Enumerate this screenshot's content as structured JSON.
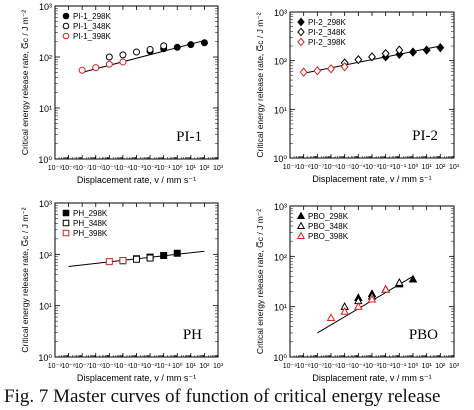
{
  "figure": {
    "caption": "Fig. 7  Master curves of function of critical energy release"
  },
  "chart_data": [
    {
      "type": "scatter",
      "panel_label": "PI-1",
      "xlabel": "Displacement rate, v / mm s⁻¹",
      "ylabel": "Critical energy release rate, G̅c / J m⁻²",
      "x_scale": "log",
      "y_scale": "log",
      "xlim": [
        1e-09,
        1000.0
      ],
      "ylim": [
        1,
        1000
      ],
      "x_ticks": [
        "10⁻⁹",
        "10⁻⁸",
        "10⁻⁷",
        "10⁻⁶",
        "10⁻⁵",
        "10⁻⁴",
        "10⁻³",
        "10⁻²",
        "10⁻¹",
        "10⁰",
        "10¹",
        "10²",
        "10³"
      ],
      "y_ticks": [
        "10⁰",
        "10¹",
        "10²",
        "10³"
      ],
      "legend_position": "top-left",
      "series": [
        {
          "name": "PI-1_298K",
          "marker": "circle",
          "fill": "filled",
          "color": "#000000",
          "x": [
            0.01,
            0.1,
            1,
            10,
            100
          ],
          "y": [
            130,
            145,
            155,
            175,
            190
          ]
        },
        {
          "name": "PI-1_348K",
          "marker": "circle",
          "fill": "open",
          "color": "#000000",
          "x": [
            1e-05,
            0.0001,
            0.001,
            0.01,
            0.1
          ],
          "y": [
            100,
            110,
            125,
            140,
            165
          ]
        },
        {
          "name": "PI-1_398K",
          "marker": "circle",
          "fill": "open",
          "color": "#e02020",
          "x": [
            1e-07,
            1e-06,
            1e-05,
            0.0001
          ],
          "y": [
            55,
            62,
            72,
            80
          ]
        }
      ],
      "fit_line": {
        "x": [
          1e-07,
          100.0
        ],
        "y": [
          50,
          210
        ]
      }
    },
    {
      "type": "scatter",
      "panel_label": "PI-2",
      "xlabel": "Displacement rate, v / mm s⁻¹",
      "ylabel": "Critical energy release rate, G̅c / J m⁻²",
      "x_scale": "log",
      "y_scale": "log",
      "xlim": [
        1e-09,
        1000.0
      ],
      "ylim": [
        1,
        1000
      ],
      "x_ticks": [
        "10⁻⁹",
        "10⁻⁸",
        "10⁻⁷",
        "10⁻⁶",
        "10⁻⁵",
        "10⁻⁴",
        "10⁻³",
        "10⁻²",
        "10⁻¹",
        "10⁰",
        "10¹",
        "10²",
        "10³"
      ],
      "y_ticks": [
        "10⁰",
        "10¹",
        "10²",
        "10³"
      ],
      "legend_position": "top-left",
      "series": [
        {
          "name": "PI-2_298K",
          "marker": "diamond",
          "fill": "filled",
          "color": "#000000",
          "x": [
            0.01,
            0.1,
            1,
            10,
            100
          ],
          "y": [
            120,
            135,
            150,
            165,
            185
          ]
        },
        {
          "name": "PI-2_348K",
          "marker": "diamond",
          "fill": "open",
          "color": "#000000",
          "x": [
            1e-05,
            0.0001,
            0.001,
            0.01,
            0.1
          ],
          "y": [
            90,
            105,
            120,
            140,
            165
          ]
        },
        {
          "name": "PI-2_398K",
          "marker": "diamond",
          "fill": "open",
          "color": "#e02020",
          "x": [
            1e-08,
            1e-07,
            1e-06,
            1e-05
          ],
          "y": [
            58,
            62,
            68,
            75
          ]
        }
      ],
      "fit_line": {
        "x": [
          1e-08,
          100.0
        ],
        "y": [
          55,
          200
        ]
      }
    },
    {
      "type": "scatter",
      "panel_label": "PH",
      "xlabel": "Displacement rate, v / mm s⁻¹",
      "ylabel": "Critical energy release rate, G̅c / J m⁻²",
      "x_scale": "log",
      "y_scale": "log",
      "xlim": [
        1e-09,
        1000.0
      ],
      "ylim": [
        1,
        1000
      ],
      "x_ticks": [
        "10⁻⁹",
        "10⁻⁸",
        "10⁻⁷",
        "10⁻⁶",
        "10⁻⁵",
        "10⁻⁴",
        "10⁻³",
        "10⁻²",
        "10⁻¹",
        "10⁰",
        "10¹",
        "10²",
        "10³"
      ],
      "y_ticks": [
        "10⁰",
        "10¹",
        "10²",
        "10³"
      ],
      "legend_position": "top-left",
      "series": [
        {
          "name": "PH_298K",
          "marker": "square",
          "fill": "filled",
          "color": "#000000",
          "x": [
            0.001,
            0.01,
            0.1,
            1
          ],
          "y": [
            82,
            88,
            95,
            105
          ]
        },
        {
          "name": "PH_348K",
          "marker": "square",
          "fill": "open",
          "color": "#000000",
          "x": [
            0.0001,
            0.001,
            0.01
          ],
          "y": [
            75,
            80,
            85
          ]
        },
        {
          "name": "PH_398K",
          "marker": "square",
          "fill": "open",
          "color": "#e02020",
          "x": [
            1e-05,
            0.0001
          ],
          "y": [
            72,
            76
          ]
        }
      ],
      "fit_line": {
        "x": [
          1e-08,
          100.0
        ],
        "y": [
          58,
          115
        ]
      }
    },
    {
      "type": "scatter",
      "panel_label": "PBO",
      "xlabel": "Displacement rate, v / mm s⁻¹",
      "ylabel": "Critical energy release rate, G̅c / J m⁻²",
      "x_scale": "log",
      "y_scale": "log",
      "xlim": [
        1e-09,
        1000.0
      ],
      "ylim": [
        1,
        1000
      ],
      "x_ticks": [
        "10⁻⁹",
        "10⁻⁸",
        "10⁻⁷",
        "10⁻⁶",
        "10⁻⁵",
        "10⁻⁴",
        "10⁻³",
        "10⁻²",
        "10⁻¹",
        "10⁰",
        "10¹",
        "10²",
        "10³"
      ],
      "y_ticks": [
        "10⁰",
        "10¹",
        "10²",
        "10³"
      ],
      "legend_position": "top-left",
      "series": [
        {
          "name": "PBO_298K",
          "marker": "triangle",
          "fill": "filled",
          "color": "#000000",
          "x": [
            0.0001,
            0.001,
            0.01,
            0.1,
            1
          ],
          "y": [
            15,
            18,
            22,
            28,
            35
          ]
        },
        {
          "name": "PBO_348K",
          "marker": "triangle",
          "fill": "open",
          "color": "#000000",
          "x": [
            1e-05,
            0.0001,
            0.001,
            0.01,
            0.1
          ],
          "y": [
            10,
            13,
            16,
            22,
            30
          ]
        },
        {
          "name": "PBO_398K",
          "marker": "triangle",
          "fill": "open",
          "color": "#e02020",
          "x": [
            1e-06,
            1e-05,
            0.0001,
            0.001,
            0.01
          ],
          "y": [
            6,
            8,
            10,
            14,
            22
          ]
        }
      ],
      "fit_line": {
        "x": [
          1e-07,
          1
        ],
        "y": [
          3,
          40
        ]
      }
    }
  ]
}
